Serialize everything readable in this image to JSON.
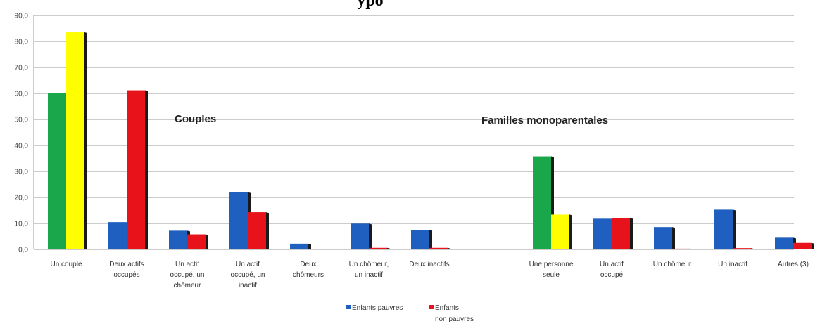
{
  "chart_data": {
    "type": "bar",
    "title_partial": "ypo",
    "ylim": [
      0,
      90
    ],
    "yticks": [
      "0,0",
      "10,0",
      "20,0",
      "30,0",
      "40,0",
      "50,0",
      "60,0",
      "70,0",
      "80,0",
      "90,0"
    ],
    "grid": true,
    "groups": [
      {
        "label": "Couples"
      },
      {
        "label": "Familles monoparentales"
      }
    ],
    "categories": [
      {
        "label": [
          "Un couple"
        ],
        "group": 0,
        "total": true,
        "values": [
          60.0,
          83.5
        ]
      },
      {
        "label": [
          "Deux actifs",
          "occupés"
        ],
        "group": 0,
        "values": [
          10.5,
          61.2
        ]
      },
      {
        "label": [
          "Un actif",
          "occupé, un",
          "chômeur"
        ],
        "group": 0,
        "values": [
          7.2,
          5.8
        ]
      },
      {
        "label": [
          "Un actif",
          "occupé, un",
          "inactif"
        ],
        "group": 0,
        "values": [
          22.0,
          14.3
        ]
      },
      {
        "label": [
          "Deux",
          "chômeurs"
        ],
        "group": 0,
        "values": [
          2.2,
          0.2
        ]
      },
      {
        "label": [
          "Un chômeur,",
          "un inactif"
        ],
        "group": 0,
        "values": [
          9.9,
          0.6
        ]
      },
      {
        "label": [
          "Deux inactifs"
        ],
        "group": 0,
        "values": [
          7.5,
          0.6
        ]
      },
      {
        "label": [
          "Une personne",
          "seule"
        ],
        "group": 1,
        "total": true,
        "values": [
          35.8,
          13.4
        ]
      },
      {
        "label": [
          "Un actif",
          "occupé"
        ],
        "group": 1,
        "values": [
          11.8,
          12.1
        ]
      },
      {
        "label": [
          "Un chômeur"
        ],
        "group": 1,
        "values": [
          8.6,
          0.3
        ]
      },
      {
        "label": [
          "Un inactif"
        ],
        "group": 1,
        "values": [
          15.3,
          0.5
        ]
      },
      {
        "label": [
          "Autres (3)"
        ],
        "group": 1,
        "values": [
          4.5,
          2.5
        ]
      }
    ],
    "series": [
      {
        "name": "Enfants pauvres",
        "color": "#1f5fbf"
      },
      {
        "name": "Enfants non pauvres",
        "name_lines": [
          "Enfants",
          "non pauvres"
        ],
        "color": "#e8121a"
      }
    ],
    "total_colors": [
      "#1aa64a",
      "#ffff00"
    ],
    "legend_position": "bottom"
  }
}
